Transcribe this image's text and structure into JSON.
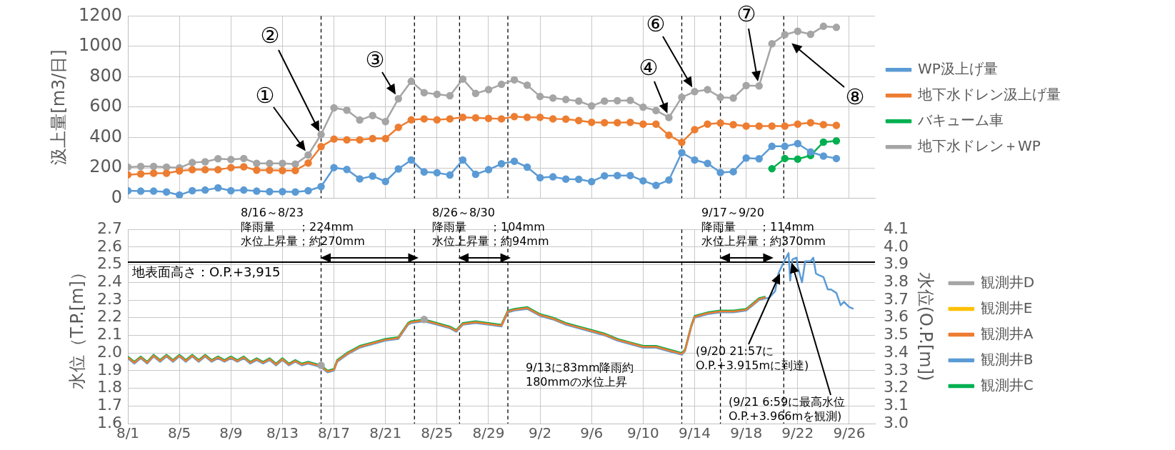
{
  "chart_data": [
    {
      "type": "line",
      "ylabel": "汲上量[m3/日]",
      "grid": true,
      "legend": "right",
      "marker": "circle",
      "tick_labels": "y",
      "x": [
        "--08-01",
        "--08-02",
        "--08-03",
        "--08-04",
        "--08-05",
        "--08-06",
        "--08-07",
        "--08-08",
        "--08-09",
        "--08-10",
        "--08-11",
        "--08-12",
        "--08-13",
        "--08-14",
        "--08-15",
        "--08-16",
        "--08-17",
        "--08-18",
        "--08-19",
        "--08-20",
        "--08-21",
        "--08-22",
        "--08-23",
        "--08-24",
        "--08-25",
        "--08-26",
        "--08-27",
        "--08-28",
        "--08-29",
        "--08-30",
        "--08-31",
        "--09-01",
        "--09-02",
        "--09-03",
        "--09-04",
        "--09-05",
        "--09-06",
        "--09-07",
        "--09-08",
        "--09-09",
        "--09-10",
        "--09-11",
        "--09-12",
        "--09-13",
        "--09-14",
        "--09-15",
        "--09-16",
        "--09-17",
        "--09-18",
        "--09-19",
        "--09-20",
        "--09-21",
        "--09-22",
        "--09-23",
        "--09-24",
        "--09-25"
      ],
      "xlim": [
        "--08-01",
        "--09-28"
      ],
      "xticks": [
        {
          "value": "--08-01",
          "label": null
        },
        {
          "value": "--08-05",
          "label": null
        },
        {
          "value": "--08-09",
          "label": null
        },
        {
          "value": "--08-13",
          "label": null
        },
        {
          "value": "--08-17",
          "label": null
        },
        {
          "value": "--08-21",
          "label": null
        },
        {
          "value": "--08-25",
          "label": null
        },
        {
          "value": "--08-29",
          "label": null
        },
        {
          "value": "--09-02",
          "label": null
        },
        {
          "value": "--09-06",
          "label": null
        },
        {
          "value": "--09-10",
          "label": null
        },
        {
          "value": "--09-14",
          "label": null
        },
        {
          "value": "--09-18",
          "label": null
        },
        {
          "value": "--09-22",
          "label": null
        },
        {
          "value": "--09-26",
          "label": null
        }
      ],
      "ylim": [
        0,
        1200
      ],
      "yticks": [
        0,
        200,
        400,
        600,
        800,
        1000,
        1200
      ],
      "series": [
        {
          "name": "WP汲上げ量",
          "color": "#5b9bd5",
          "values": [
            50,
            47,
            47,
            42,
            22,
            50,
            54,
            69,
            50,
            54,
            47,
            44,
            44,
            42,
            50,
            77,
            202,
            190,
            128,
            146,
            111,
            193,
            252,
            173,
            168,
            153,
            252,
            158,
            188,
            227,
            244,
            205,
            136,
            141,
            126,
            125,
            110,
            148,
            150,
            150,
            115,
            85,
            120,
            300,
            252,
            230,
            170,
            175,
            265,
            260,
            342,
            342,
            360,
            305,
            278,
            262
          ]
        },
        {
          "name": "地下水ドレン汲上げ量",
          "color": "#ed7d31",
          "values": [
            155,
            160,
            165,
            165,
            180,
            188,
            188,
            188,
            202,
            207,
            185,
            185,
            183,
            183,
            232,
            340,
            390,
            385,
            385,
            393,
            393,
            467,
            516,
            523,
            516,
            523,
            533,
            530,
            526,
            523,
            538,
            533,
            533,
            523,
            521,
            512,
            500,
            498,
            498,
            500,
            488,
            488,
            415,
            368,
            452,
            488,
            495,
            485,
            475,
            475,
            475,
            475,
            488,
            498,
            485,
            480
          ]
        },
        {
          "name": "バキューム車",
          "color": "#00b050",
          "x": [
            "--09-20",
            "--09-21",
            "--09-22",
            "--09-23",
            "--09-24",
            "--09-25"
          ],
          "values": [
            195,
            262,
            258,
            282,
            370,
            378
          ]
        },
        {
          "name": "地下水ドレン＋WP",
          "color": "#a5a5a5",
          "values": [
            205,
            210,
            210,
            205,
            200,
            235,
            240,
            260,
            255,
            262,
            230,
            230,
            230,
            225,
            285,
            420,
            595,
            580,
            515,
            545,
            505,
            655,
            770,
            695,
            685,
            675,
            785,
            690,
            715,
            750,
            780,
            745,
            670,
            660,
            650,
            640,
            608,
            640,
            642,
            645,
            600,
            578,
            532,
            665,
            702,
            715,
            665,
            660,
            742,
            740,
            1017,
            1077,
            1100,
            1080,
            1132,
            1125
          ]
        }
      ],
      "ref_lines": [
        {
          "axis": "x",
          "value": "--08-16",
          "label": null,
          "color": "#000000",
          "line_style": "dashed"
        },
        {
          "axis": "x",
          "value": "--08-23T06:00",
          "label": null,
          "color": "#000000",
          "line_style": "dashed"
        },
        {
          "axis": "x",
          "value": "--08-26T18:00",
          "label": null,
          "color": "#000000",
          "line_style": "dashed"
        },
        {
          "axis": "x",
          "value": "--08-30T12:00",
          "label": null,
          "color": "#000000",
          "line_style": "dashed"
        },
        {
          "axis": "x",
          "value": "--09-13",
          "label": null,
          "color": "#000000",
          "line_style": "dashed"
        },
        {
          "axis": "x",
          "value": "--09-16",
          "label": null,
          "color": "#000000",
          "line_style": "dashed"
        },
        {
          "axis": "x",
          "value": "--09-20T22:00",
          "label": null,
          "color": "#000000",
          "line_style": "dashed"
        }
      ],
      "annotations": [
        {
          "text": "①",
          "x": "--08-15",
          "y": 285
        },
        "②",
        {
          "text": "③",
          "x": "--08-22",
          "y": 655
        },
        {
          "text": "④",
          "x": "--09-12",
          "y": 532
        },
        {
          "text": "⑥",
          "x": "--09-14",
          "y": 702
        },
        {
          "text": "⑦",
          "x": "--09-19",
          "y": 740
        },
        "⑧"
      ]
    },
    {
      "type": "line",
      "ylabel": "水位（T.P.[m]）",
      "y2label": "水位(O.P.[m])",
      "grid": true,
      "legend": "right",
      "marker": "none",
      "x": [
        "--08-01",
        "--08-01T12:00",
        "--08-02",
        "--08-02T12:00",
        "--08-03",
        "--08-03T12:00",
        "--08-04",
        "--08-04T12:00",
        "--08-05",
        "--08-05T12:00",
        "--08-06",
        "--08-06T12:00",
        "--08-07",
        "--08-07T12:00",
        "--08-08",
        "--08-08T12:00",
        "--08-09",
        "--08-09T12:00",
        "--08-10",
        "--08-10T12:00",
        "--08-11",
        "--08-11T12:00",
        "--08-12",
        "--08-12T12:00",
        "--08-13",
        "--08-13T12:00",
        "--08-14",
        "--08-14T12:00",
        "--08-15",
        "--08-15T12:00",
        "--08-16",
        "--08-16T12:00",
        "--08-17",
        "--08-17T06:00",
        "--08-18",
        "--08-19",
        "--08-20",
        "--08-21",
        "--08-22",
        "--08-22T18:00",
        "--08-23",
        "--08-24",
        "--08-25",
        "--08-26",
        "--08-26T12:00",
        "--08-27",
        "--08-28",
        "--08-29",
        "--08-30",
        "--08-30T12:00",
        "--08-31",
        "--09-01",
        "--09-02",
        "--09-03",
        "--09-04",
        "--09-05",
        "--09-06",
        "--09-07",
        "--09-08",
        "--09-09",
        "--09-10",
        "--09-11",
        "--09-12",
        "--09-13",
        "--09-13T06:00",
        "--09-13T18:00",
        "--09-14",
        "--09-15",
        "--09-16",
        "--09-17",
        "--09-18",
        "--09-18T12:00",
        "--09-19",
        "--09-19T12:00"
      ],
      "xlim": [
        "--08-01",
        "--09-28"
      ],
      "xticks": [
        {
          "value": "--08-01",
          "label": "8/1"
        },
        {
          "value": "--08-05",
          "label": "8/5"
        },
        {
          "value": "--08-09",
          "label": "8/9"
        },
        {
          "value": "--08-13",
          "label": "8/13"
        },
        {
          "value": "--08-17",
          "label": "8/17"
        },
        {
          "value": "--08-21",
          "label": "8/21"
        },
        {
          "value": "--08-25",
          "label": "8/25"
        },
        {
          "value": "--08-29",
          "label": "8/29"
        },
        {
          "value": "--09-02",
          "label": "9/2"
        },
        {
          "value": "--09-06",
          "label": "9/6"
        },
        {
          "value": "--09-10",
          "label": "9/10"
        },
        {
          "value": "--09-14",
          "label": "9/14"
        },
        {
          "value": "--09-18",
          "label": "9/18"
        },
        {
          "value": "--09-22",
          "label": "9/22"
        },
        {
          "value": "--09-26",
          "label": "9/26"
        }
      ],
      "ylim": [
        1.6,
        2.7
      ],
      "yticks": [
        1.6,
        1.7,
        1.8,
        1.9,
        {
          "value": 2,
          "label": "2.0"
        },
        2.1,
        2.2,
        2.3,
        2.4,
        2.5,
        2.6,
        2.7
      ],
      "y2lim": [
        3.0,
        4.1
      ],
      "y2ticks": [
        {
          "value": 3,
          "label": "3.0"
        },
        3.1,
        3.2,
        3.3,
        3.4,
        3.5,
        3.6,
        3.7,
        3.8,
        3.9,
        {
          "value": 4,
          "label": "4.0"
        },
        4.1
      ],
      "series": [
        {
          "name": "観測井A",
          "color": "#ed7d31",
          "values": [
            1.975,
            1.945,
            1.975,
            1.945,
            1.985,
            1.955,
            1.985,
            1.955,
            1.985,
            1.955,
            1.985,
            1.955,
            1.985,
            1.955,
            1.975,
            1.955,
            1.975,
            1.955,
            1.975,
            1.945,
            1.965,
            1.945,
            1.965,
            1.935,
            1.965,
            1.935,
            1.955,
            1.935,
            1.945,
            1.935,
            1.925,
            1.895,
            1.905,
            1.955,
            1.995,
            2.035,
            2.055,
            2.075,
            2.085,
            2.165,
            2.175,
            2.185,
            2.165,
            2.145,
            2.125,
            2.165,
            2.175,
            2.165,
            2.155,
            2.235,
            2.245,
            2.255,
            2.215,
            2.195,
            2.165,
            2.145,
            2.125,
            2.105,
            2.075,
            2.055,
            2.035,
            2.035,
            2.015,
            1.995,
            2.015,
            2.155,
            2.205,
            2.225,
            2.235,
            2.235,
            2.245,
            2.275,
            2.305,
            2.315
          ]
        },
        {
          "name": "観測井B",
          "color": "#5b9bd5",
          "x": [
            "--08-01",
            "--08-01T12:00",
            "--08-02",
            "--08-02T12:00",
            "--08-03",
            "--08-03T12:00",
            "--08-04",
            "--08-04T12:00",
            "--08-05",
            "--08-05T12:00",
            "--08-06",
            "--08-06T12:00",
            "--08-07",
            "--08-07T12:00",
            "--08-08",
            "--08-08T12:00",
            "--08-09",
            "--08-09T12:00",
            "--08-10",
            "--08-10T12:00",
            "--08-11",
            "--08-11T12:00",
            "--08-12",
            "--08-12T12:00",
            "--08-13",
            "--08-13T12:00",
            "--08-14",
            "--08-14T12:00",
            "--08-15",
            "--08-15T12:00",
            "--08-16",
            "--08-16T12:00",
            "--08-17",
            "--08-17T06:00",
            "--08-18",
            "--08-19",
            "--08-20",
            "--08-21",
            "--08-22",
            "--08-22T18:00",
            "--08-23",
            "--08-24",
            "--08-25",
            "--08-26",
            "--08-26T12:00",
            "--08-27",
            "--08-28",
            "--08-29",
            "--08-30",
            "--08-30T12:00",
            "--08-31",
            "--09-01",
            "--09-02",
            "--09-03",
            "--09-04",
            "--09-05",
            "--09-06",
            "--09-07",
            "--09-08",
            "--09-09",
            "--09-10",
            "--09-11",
            "--09-12",
            "--09-13",
            "--09-13T06:00",
            "--09-13T18:00",
            "--09-14",
            "--09-15",
            "--09-16",
            "--09-17",
            "--09-18",
            "--09-18T12:00",
            "--09-19",
            "--09-19T12:00",
            "--09-19T18:00",
            "--09-20T06:00",
            "--09-20T12:00",
            "--09-20T22:00",
            "--09-21T07:00",
            "--09-21T10:00",
            "--09-21T14:00",
            "--09-21T22:00",
            "--09-22",
            "--09-22T08:00",
            "--09-22T14:00",
            "--09-23",
            "--09-23T05:00",
            "--09-23T10:00",
            "--09-23T16:00",
            "--09-24",
            "--09-24T08:00",
            "--09-24T14:00",
            "--09-25",
            "--09-25T08:00",
            "--09-25T14:00",
            "--09-26",
            "--09-26T08:00"
          ],
          "values": [
            1.97,
            1.94,
            1.97,
            1.94,
            1.98,
            1.95,
            1.98,
            1.95,
            1.98,
            1.95,
            1.98,
            1.95,
            1.98,
            1.95,
            1.97,
            1.95,
            1.97,
            1.95,
            1.97,
            1.94,
            1.96,
            1.94,
            1.96,
            1.93,
            1.96,
            1.93,
            1.95,
            1.93,
            1.94,
            1.93,
            1.92,
            1.89,
            1.9,
            1.95,
            1.99,
            2.03,
            2.05,
            2.07,
            2.08,
            2.16,
            2.17,
            2.18,
            2.16,
            2.14,
            2.12,
            2.16,
            2.17,
            2.16,
            2.15,
            2.23,
            2.24,
            2.25,
            2.21,
            2.19,
            2.16,
            2.14,
            2.12,
            2.1,
            2.07,
            2.05,
            2.03,
            2.03,
            2.01,
            1.99,
            2.01,
            2.15,
            2.2,
            2.22,
            2.23,
            2.23,
            2.24,
            2.27,
            2.3,
            2.31,
            2.31,
            2.35,
            2.45,
            2.515,
            2.566,
            2.41,
            2.53,
            2.54,
            2.49,
            2.4,
            2.52,
            2.52,
            2.54,
            2.45,
            2.44,
            2.43,
            2.36,
            2.36,
            2.34,
            2.27,
            2.29,
            2.26,
            2.25
          ]
        },
        {
          "name": "観測井C",
          "color": "#00b050",
          "values": [
            1.98,
            1.95,
            1.98,
            1.95,
            1.99,
            1.96,
            1.99,
            1.96,
            1.99,
            1.96,
            1.99,
            1.96,
            1.99,
            1.96,
            1.98,
            1.96,
            1.98,
            1.96,
            1.98,
            1.95,
            1.97,
            1.95,
            1.97,
            1.94,
            1.97,
            1.94,
            1.96,
            1.94,
            1.95,
            1.94,
            1.93,
            1.9,
            1.91,
            1.96,
            2.0,
            2.04,
            2.06,
            2.08,
            2.09,
            2.17,
            2.18,
            2.19,
            2.17,
            2.15,
            2.13,
            2.17,
            2.18,
            2.17,
            2.16,
            2.24,
            2.25,
            2.26,
            2.22,
            2.2,
            2.17,
            2.15,
            2.13,
            2.11,
            2.08,
            2.06,
            2.04,
            2.04,
            2.02,
            2.0,
            2.02,
            2.16,
            2.21,
            2.23,
            2.24,
            2.24,
            2.25,
            2.28,
            2.31,
            2.32
          ]
        },
        {
          "name": "観測井D",
          "color": "#a5a5a5",
          "type": "scatter",
          "marker": "circle",
          "x": [
            "--08-16",
            "--08-24"
          ],
          "values": [
            1.93,
            2.19
          ]
        },
        {
          "name": "観測井E",
          "color": "#ffc000",
          "type": "scatter",
          "marker": "circle",
          "values": [
            null,
            null,
            null,
            null,
            null,
            null,
            null,
            null,
            null,
            null,
            null,
            null,
            null,
            null,
            null,
            null,
            null,
            null,
            null,
            null,
            null,
            null,
            null,
            null,
            null,
            null,
            null,
            null,
            null,
            null,
            null,
            null,
            null,
            null,
            null,
            null,
            null,
            null,
            null,
            null,
            null,
            null,
            null,
            null,
            null,
            null,
            null,
            null,
            null,
            null,
            null,
            null,
            null,
            null,
            null,
            null,
            null,
            null,
            null,
            null,
            null,
            null,
            null,
            null,
            null,
            null,
            null,
            null,
            null,
            null,
            null,
            null,
            null,
            null
          ]
        }
      ],
      "ref_lines": [
        {
          "axis": "y2",
          "value": 3.915,
          "label": "地表面高さ：O.P.+3,915",
          "color": "#000000",
          "line_style": "solid"
        },
        {
          "axis": "x",
          "value": "--08-16",
          "label": null,
          "color": "#000000",
          "line_style": "dashed"
        },
        {
          "axis": "x",
          "value": "--08-23T06:00",
          "label": null,
          "color": "#000000",
          "line_style": "dashed"
        },
        {
          "axis": "x",
          "value": "--08-26T18:00",
          "label": null,
          "color": "#000000",
          "line_style": "dashed"
        },
        {
          "axis": "x",
          "value": "--08-30T12:00",
          "label": null,
          "color": "#000000",
          "line_style": "dashed"
        },
        {
          "axis": "x",
          "value": "--09-13",
          "label": null,
          "color": "#000000",
          "line_style": "dashed"
        },
        {
          "axis": "x",
          "value": "--09-16",
          "label": null,
          "color": "#000000",
          "line_style": "dashed"
        },
        {
          "axis": "x",
          "value": "--09-20T22:00",
          "label": null,
          "color": "#000000",
          "line_style": "dashed"
        }
      ],
      "annotations": [
        {
          "text": "8/16～8/23\n降雨量　　；224mm\n水位上昇量；約270mm",
          "x": "--08-16",
          "y": 2.52
        },
        {
          "text": "8/26～8/30\n降雨量　　；104mm\n水位上昇量；約94mm",
          "x": "--08-26T18:00",
          "y": 2.52
        },
        {
          "text": "9/17～9/20\n降雨量　　；114mm\n水位上昇量；約370mm",
          "x": "--09-16",
          "y": 2.52
        },
        "9/13に83mm降雨約180mmの水位上昇",
        "(9/20 21:57に\nO.P.+3.915mに到達)",
        "(9/21 6:59に最高水位\nO.P.+3.966mを観測)"
      ]
    }
  ]
}
